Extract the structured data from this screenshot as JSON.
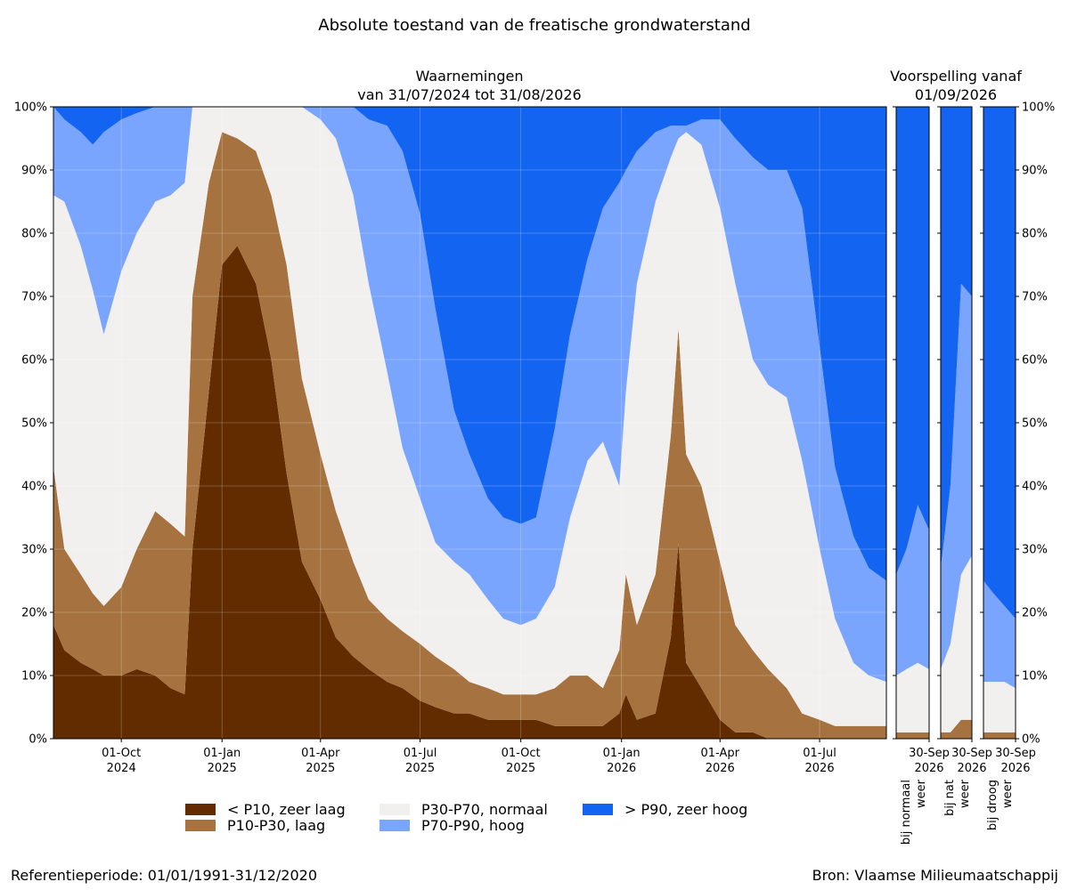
{
  "chart_data": {
    "type": "area",
    "title": "Absolute toestand van de freatische grondwaterstand",
    "observations": {
      "title_line1": "Waarnemingen",
      "title_line2": "van 31/07/2024 tot 31/08/2026",
      "x_start": "2024-07-31",
      "x_end": "2026-08-31",
      "x_ticks": [
        {
          "date": "2024-10-01",
          "label1": "01-Oct",
          "label2": "2024"
        },
        {
          "date": "2025-01-01",
          "label1": "01-Jan",
          "label2": "2025"
        },
        {
          "date": "2025-04-01",
          "label1": "01-Apr",
          "label2": "2025"
        },
        {
          "date": "2025-07-01",
          "label1": "01-Jul",
          "label2": "2025"
        },
        {
          "date": "2025-10-01",
          "label1": "01-Oct",
          "label2": "2025"
        },
        {
          "date": "2026-01-01",
          "label1": "01-Jan",
          "label2": "2026"
        },
        {
          "date": "2026-04-01",
          "label1": "01-Apr",
          "label2": "2026"
        },
        {
          "date": "2026-07-01",
          "label1": "01-Jul",
          "label2": "2026"
        }
      ],
      "ylim": [
        0,
        100
      ],
      "y_ticks": [
        "0%",
        "10%",
        "20%",
        "30%",
        "40%",
        "50%",
        "60%",
        "70%",
        "80%",
        "90%",
        "100%"
      ],
      "grid": true,
      "boundary_names": [
        "% > P90",
        "% > P70",
        "% > P30",
        "% > P10"
      ],
      "series": [
        {
          "date": "2024-07-31",
          "values": [
            18,
            43,
            86,
            100
          ]
        },
        {
          "date": "2024-08-10",
          "values": [
            14,
            30,
            85,
            98
          ]
        },
        {
          "date": "2024-08-25",
          "values": [
            12,
            26,
            78,
            96
          ]
        },
        {
          "date": "2024-09-05",
          "values": [
            11,
            23,
            71,
            94
          ]
        },
        {
          "date": "2024-09-15",
          "values": [
            10,
            21,
            64,
            96
          ]
        },
        {
          "date": "2024-10-01",
          "values": [
            10,
            24,
            74,
            98
          ]
        },
        {
          "date": "2024-10-15",
          "values": [
            11,
            30,
            80,
            99
          ]
        },
        {
          "date": "2024-11-01",
          "values": [
            10,
            36,
            85,
            100
          ]
        },
        {
          "date": "2024-11-15",
          "values": [
            8,
            34,
            86,
            100
          ]
        },
        {
          "date": "2024-11-28",
          "values": [
            7,
            32,
            88,
            100
          ]
        },
        {
          "date": "2024-12-05",
          "values": [
            30,
            70,
            100,
            100
          ]
        },
        {
          "date": "2024-12-20",
          "values": [
            55,
            88,
            100,
            100
          ]
        },
        {
          "date": "2025-01-01",
          "values": [
            75,
            96,
            100,
            100
          ]
        },
        {
          "date": "2025-01-15",
          "values": [
            78,
            95,
            100,
            100
          ]
        },
        {
          "date": "2025-02-01",
          "values": [
            72,
            93,
            100,
            100
          ]
        },
        {
          "date": "2025-02-15",
          "values": [
            60,
            86,
            100,
            100
          ]
        },
        {
          "date": "2025-03-01",
          "values": [
            42,
            75,
            100,
            100
          ]
        },
        {
          "date": "2025-03-15",
          "values": [
            28,
            57,
            100,
            100
          ]
        },
        {
          "date": "2025-04-01",
          "values": [
            22,
            45,
            98,
            100
          ]
        },
        {
          "date": "2025-04-15",
          "values": [
            16,
            36,
            95,
            100
          ]
        },
        {
          "date": "2025-05-01",
          "values": [
            13,
            28,
            86,
            100
          ]
        },
        {
          "date": "2025-05-15",
          "values": [
            11,
            22,
            72,
            98
          ]
        },
        {
          "date": "2025-06-01",
          "values": [
            9,
            19,
            58,
            97
          ]
        },
        {
          "date": "2025-06-15",
          "values": [
            8,
            17,
            46,
            93
          ]
        },
        {
          "date": "2025-07-01",
          "values": [
            6,
            15,
            38,
            83
          ]
        },
        {
          "date": "2025-07-15",
          "values": [
            5,
            13,
            31,
            68
          ]
        },
        {
          "date": "2025-08-01",
          "values": [
            4,
            11,
            28,
            52
          ]
        },
        {
          "date": "2025-08-15",
          "values": [
            4,
            9,
            26,
            45
          ]
        },
        {
          "date": "2025-09-01",
          "values": [
            3,
            8,
            22,
            38
          ]
        },
        {
          "date": "2025-09-15",
          "values": [
            3,
            7,
            19,
            35
          ]
        },
        {
          "date": "2025-10-01",
          "values": [
            3,
            7,
            18,
            34
          ]
        },
        {
          "date": "2025-10-15",
          "values": [
            3,
            7,
            19,
            35
          ]
        },
        {
          "date": "2025-11-01",
          "values": [
            2,
            8,
            24,
            49
          ]
        },
        {
          "date": "2025-11-15",
          "values": [
            2,
            10,
            35,
            64
          ]
        },
        {
          "date": "2025-12-01",
          "values": [
            2,
            10,
            44,
            76
          ]
        },
        {
          "date": "2025-12-15",
          "values": [
            2,
            8,
            47,
            84
          ]
        },
        {
          "date": "2025-12-30",
          "values": [
            4,
            14,
            40,
            88
          ]
        },
        {
          "date": "2026-01-05",
          "values": [
            7,
            26,
            55,
            90
          ]
        },
        {
          "date": "2026-01-15",
          "values": [
            3,
            18,
            72,
            93
          ]
        },
        {
          "date": "2026-02-01",
          "values": [
            4,
            26,
            85,
            96
          ]
        },
        {
          "date": "2026-02-15",
          "values": [
            16,
            48,
            92,
            97
          ]
        },
        {
          "date": "2026-02-22",
          "values": [
            31,
            65,
            95,
            97
          ]
        },
        {
          "date": "2026-03-01",
          "values": [
            12,
            45,
            96,
            97
          ]
        },
        {
          "date": "2026-03-15",
          "values": [
            8,
            40,
            94,
            98
          ]
        },
        {
          "date": "2026-04-01",
          "values": [
            3,
            28,
            84,
            98
          ]
        },
        {
          "date": "2026-04-15",
          "values": [
            1,
            18,
            72,
            95
          ]
        },
        {
          "date": "2026-05-01",
          "values": [
            1,
            14,
            60,
            92
          ]
        },
        {
          "date": "2026-05-15",
          "values": [
            0,
            11,
            56,
            90
          ]
        },
        {
          "date": "2026-06-01",
          "values": [
            0,
            8,
            54,
            90
          ]
        },
        {
          "date": "2026-06-15",
          "values": [
            0,
            4,
            44,
            84
          ]
        },
        {
          "date": "2026-07-01",
          "values": [
            0,
            3,
            30,
            62
          ]
        },
        {
          "date": "2026-07-15",
          "values": [
            0,
            2,
            19,
            43
          ]
        },
        {
          "date": "2026-08-01",
          "values": [
            0,
            2,
            12,
            32
          ]
        },
        {
          "date": "2026-08-15",
          "values": [
            0,
            2,
            10,
            27
          ]
        },
        {
          "date": "2026-08-31",
          "values": [
            0,
            2,
            9,
            25
          ]
        }
      ]
    },
    "forecast": {
      "title_line1": "Voorspelling vanaf",
      "title_line2": "01/09/2026",
      "x_tick_label1": "30-Sep",
      "x_tick_label2": "2026",
      "panels": [
        {
          "name": "bij normaal weer",
          "label_line1": "bij normaal",
          "label_line2": "weer",
          "series": [
            {
              "date": "2026-09-01",
              "values": [
                0,
                1,
                10,
                26
              ]
            },
            {
              "date": "2026-09-10",
              "values": [
                0,
                1,
                11,
                30
              ]
            },
            {
              "date": "2026-09-20",
              "values": [
                0,
                1,
                12,
                37
              ]
            },
            {
              "date": "2026-09-30",
              "values": [
                0,
                1,
                11,
                33
              ]
            }
          ]
        },
        {
          "name": "bij nat weer",
          "label_line1": "bij nat",
          "label_line2": "weer",
          "series": [
            {
              "date": "2026-09-01",
              "values": [
                0,
                1,
                11,
                27
              ]
            },
            {
              "date": "2026-09-10",
              "values": [
                0,
                1,
                15,
                40
              ]
            },
            {
              "date": "2026-09-20",
              "values": [
                0,
                3,
                26,
                72
              ]
            },
            {
              "date": "2026-09-30",
              "values": [
                0,
                3,
                29,
                70
              ]
            }
          ]
        },
        {
          "name": "bij droog weer",
          "label_line1": "bij droog",
          "label_line2": "weer",
          "series": [
            {
              "date": "2026-09-01",
              "values": [
                0,
                1,
                9,
                25
              ]
            },
            {
              "date": "2026-09-10",
              "values": [
                0,
                1,
                9,
                23
              ]
            },
            {
              "date": "2026-09-20",
              "values": [
                0,
                1,
                9,
                21
              ]
            },
            {
              "date": "2026-09-30",
              "values": [
                0,
                1,
                8,
                19
              ]
            }
          ]
        }
      ]
    },
    "legend": [
      {
        "label": "< P10, zeer laag",
        "color": "#622b00"
      },
      {
        "label": "P10-P30, laag",
        "color": "#a67340"
      },
      {
        "label": "P30-P70, normaal",
        "color": "#f2f0ef"
      },
      {
        "label": "P70-P90, hoog",
        "color": "#7aa5ff"
      },
      {
        "label": "> P90, zeer hoog",
        "color": "#1364f0"
      }
    ],
    "footer_left": "Referentieperiode: 01/01/1991-31/12/2020",
    "footer_right": "Bron: Vlaamse Milieumaatschappij"
  }
}
